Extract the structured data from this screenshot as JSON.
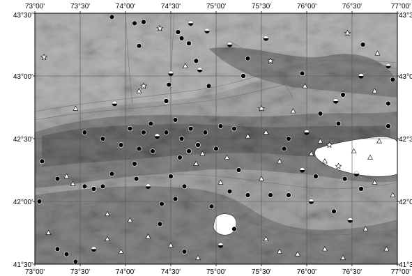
{
  "map": {
    "lon_ticks": [
      "73°00'",
      "73°30'",
      "74°00'",
      "74°30'",
      "75°00'",
      "75°30'",
      "76°00'",
      "76°30'",
      "77°00'"
    ],
    "lat_ticks": [
      "43°30'",
      "43°00'",
      "42°30'",
      "42°00'",
      "41°30'"
    ],
    "lat_ticks_right": [
      "43°3",
      "43°0",
      "42°3",
      "42°0",
      "41°3"
    ],
    "lon_range": [
      73.0,
      77.0
    ],
    "lat_range": [
      41.5,
      43.5
    ],
    "grid": true,
    "colors": {
      "lowland": "#d6d6d6",
      "foothill": "#b4b4b4",
      "mountain": "#6e6e6e",
      "highland": "#3e3e3e",
      "water": "#ffffff"
    },
    "marker_types": [
      "filled-circle",
      "half-filled-circle",
      "open-triangle",
      "open-star"
    ],
    "stations": [
      {
        "lon": 73.85,
        "lat": 43.47,
        "type": "filled-circle"
      },
      {
        "lon": 74.1,
        "lat": 43.42,
        "type": "filled-circle"
      },
      {
        "lon": 74.2,
        "lat": 43.43,
        "type": "filled-circle"
      },
      {
        "lon": 74.38,
        "lat": 43.38,
        "type": "open-star"
      },
      {
        "lon": 74.15,
        "lat": 43.24,
        "type": "filled-circle"
      },
      {
        "lon": 74.58,
        "lat": 43.35,
        "type": "filled-circle"
      },
      {
        "lon": 74.62,
        "lat": 43.3,
        "type": "filled-circle"
      },
      {
        "lon": 74.7,
        "lat": 43.26,
        "type": "filled-circle"
      },
      {
        "lon": 74.72,
        "lat": 43.42,
        "type": "half-filled-circle"
      },
      {
        "lon": 74.78,
        "lat": 43.12,
        "type": "filled-circle"
      },
      {
        "lon": 74.82,
        "lat": 43.05,
        "type": "half-filled-circle"
      },
      {
        "lon": 74.66,
        "lat": 43.08,
        "type": "open-triangle"
      },
      {
        "lon": 74.5,
        "lat": 43.02,
        "type": "half-filled-circle"
      },
      {
        "lon": 74.9,
        "lat": 43.36,
        "type": "half-filled-circle"
      },
      {
        "lon": 74.92,
        "lat": 42.92,
        "type": "filled-circle"
      },
      {
        "lon": 73.1,
        "lat": 43.15,
        "type": "open-star"
      },
      {
        "lon": 74.2,
        "lat": 42.92,
        "type": "open-star"
      },
      {
        "lon": 74.15,
        "lat": 42.88,
        "type": "open-triangle"
      },
      {
        "lon": 73.88,
        "lat": 42.78,
        "type": "half-filled-circle"
      },
      {
        "lon": 73.45,
        "lat": 42.74,
        "type": "open-triangle"
      },
      {
        "lon": 74.48,
        "lat": 42.93,
        "type": "filled-circle"
      },
      {
        "lon": 74.45,
        "lat": 42.8,
        "type": "filled-circle"
      },
      {
        "lon": 75.15,
        "lat": 43.25,
        "type": "half-filled-circle"
      },
      {
        "lon": 75.35,
        "lat": 43.14,
        "type": "filled-circle"
      },
      {
        "lon": 75.3,
        "lat": 43.0,
        "type": "filled-circle"
      },
      {
        "lon": 75.55,
        "lat": 43.3,
        "type": "half-filled-circle"
      },
      {
        "lon": 75.6,
        "lat": 43.12,
        "type": "open-star"
      },
      {
        "lon": 75.95,
        "lat": 43.02,
        "type": "filled-circle"
      },
      {
        "lon": 75.98,
        "lat": 42.92,
        "type": "open-triangle"
      },
      {
        "lon": 76.45,
        "lat": 43.34,
        "type": "open-star"
      },
      {
        "lon": 76.62,
        "lat": 43.25,
        "type": "filled-circle"
      },
      {
        "lon": 76.78,
        "lat": 43.18,
        "type": "open-triangle"
      },
      {
        "lon": 76.9,
        "lat": 43.08,
        "type": "half-filled-circle"
      },
      {
        "lon": 76.95,
        "lat": 42.97,
        "type": "filled-circle"
      },
      {
        "lon": 75.5,
        "lat": 42.74,
        "type": "open-star"
      },
      {
        "lon": 76.32,
        "lat": 42.8,
        "type": "half-filled-circle"
      },
      {
        "lon": 76.9,
        "lat": 42.78,
        "type": "filled-circle"
      },
      {
        "lon": 73.55,
        "lat": 42.55,
        "type": "filled-circle"
      },
      {
        "lon": 73.75,
        "lat": 42.5,
        "type": "filled-circle"
      },
      {
        "lon": 73.95,
        "lat": 42.45,
        "type": "filled-circle"
      },
      {
        "lon": 74.05,
        "lat": 42.58,
        "type": "filled-circle"
      },
      {
        "lon": 74.2,
        "lat": 42.55,
        "type": "filled-circle"
      },
      {
        "lon": 74.28,
        "lat": 42.62,
        "type": "filled-circle"
      },
      {
        "lon": 74.35,
        "lat": 42.52,
        "type": "half-filled-circle"
      },
      {
        "lon": 74.45,
        "lat": 42.55,
        "type": "filled-circle"
      },
      {
        "lon": 74.55,
        "lat": 42.65,
        "type": "filled-circle"
      },
      {
        "lon": 74.62,
        "lat": 42.5,
        "type": "filled-circle"
      },
      {
        "lon": 74.72,
        "lat": 42.58,
        "type": "filled-circle"
      },
      {
        "lon": 74.8,
        "lat": 42.45,
        "type": "filled-circle"
      },
      {
        "lon": 74.88,
        "lat": 42.55,
        "type": "filled-circle"
      },
      {
        "lon": 75.05,
        "lat": 42.6,
        "type": "filled-circle"
      },
      {
        "lon": 75.2,
        "lat": 42.58,
        "type": "filled-circle"
      },
      {
        "lon": 75.35,
        "lat": 42.52,
        "type": "open-triangle"
      },
      {
        "lon": 75.55,
        "lat": 42.55,
        "type": "open-triangle"
      },
      {
        "lon": 75.8,
        "lat": 42.5,
        "type": "filled-circle"
      },
      {
        "lon": 76.0,
        "lat": 42.55,
        "type": "half-filled-circle"
      },
      {
        "lon": 76.15,
        "lat": 42.48,
        "type": "open-triangle"
      },
      {
        "lon": 76.35,
        "lat": 42.62,
        "type": "filled-circle"
      },
      {
        "lon": 73.08,
        "lat": 42.32,
        "type": "filled-circle"
      },
      {
        "lon": 73.35,
        "lat": 42.2,
        "type": "open-triangle"
      },
      {
        "lon": 73.55,
        "lat": 42.12,
        "type": "filled-circle"
      },
      {
        "lon": 73.65,
        "lat": 42.1,
        "type": "filled-circle"
      },
      {
        "lon": 73.75,
        "lat": 42.12,
        "type": "filled-circle"
      },
      {
        "lon": 73.85,
        "lat": 42.22,
        "type": "filled-circle"
      },
      {
        "lon": 74.1,
        "lat": 42.3,
        "type": "filled-circle"
      },
      {
        "lon": 74.12,
        "lat": 42.18,
        "type": "filled-circle"
      },
      {
        "lon": 74.25,
        "lat": 42.12,
        "type": "half-filled-circle"
      },
      {
        "lon": 74.5,
        "lat": 42.2,
        "type": "filled-circle"
      },
      {
        "lon": 74.65,
        "lat": 42.12,
        "type": "filled-circle"
      },
      {
        "lon": 74.55,
        "lat": 42.02,
        "type": "filled-circle"
      },
      {
        "lon": 74.4,
        "lat": 41.98,
        "type": "filled-circle"
      },
      {
        "lon": 74.78,
        "lat": 42.3,
        "type": "open-triangle"
      },
      {
        "lon": 74.95,
        "lat": 41.96,
        "type": "filled-circle"
      },
      {
        "lon": 75.25,
        "lat": 42.25,
        "type": "filled-circle"
      },
      {
        "lon": 75.5,
        "lat": 42.18,
        "type": "open-triangle"
      },
      {
        "lon": 75.7,
        "lat": 42.32,
        "type": "open-triangle"
      },
      {
        "lon": 75.95,
        "lat": 42.25,
        "type": "half-filled-circle"
      },
      {
        "lon": 76.1,
        "lat": 42.2,
        "type": "filled-circle"
      },
      {
        "lon": 76.2,
        "lat": 42.32,
        "type": "open-triangle"
      },
      {
        "lon": 76.35,
        "lat": 42.28,
        "type": "open-star"
      },
      {
        "lon": 76.42,
        "lat": 42.18,
        "type": "filled-circle"
      },
      {
        "lon": 76.55,
        "lat": 42.22,
        "type": "half-filled-circle"
      },
      {
        "lon": 76.6,
        "lat": 42.1,
        "type": "filled-circle"
      },
      {
        "lon": 76.75,
        "lat": 42.15,
        "type": "open-triangle"
      },
      {
        "lon": 76.95,
        "lat": 42.05,
        "type": "open-triangle"
      },
      {
        "lon": 75.35,
        "lat": 42.05,
        "type": "filled-circle"
      },
      {
        "lon": 75.6,
        "lat": 42.05,
        "type": "filled-circle"
      },
      {
        "lon": 75.8,
        "lat": 42.05,
        "type": "filled-circle"
      },
      {
        "lon": 76.05,
        "lat": 42.0,
        "type": "half-filled-circle"
      },
      {
        "lon": 76.3,
        "lat": 41.92,
        "type": "filled-circle"
      },
      {
        "lon": 76.48,
        "lat": 41.85,
        "type": "half-filled-circle"
      },
      {
        "lon": 76.65,
        "lat": 41.78,
        "type": "open-triangle"
      },
      {
        "lon": 76.88,
        "lat": 41.62,
        "type": "open-triangle"
      },
      {
        "lon": 73.05,
        "lat": 42.0,
        "type": "filled-circle"
      },
      {
        "lon": 73.25,
        "lat": 41.62,
        "type": "filled-circle"
      },
      {
        "lon": 73.35,
        "lat": 41.58,
        "type": "filled-circle"
      },
      {
        "lon": 73.45,
        "lat": 41.52,
        "type": "filled-circle"
      },
      {
        "lon": 73.65,
        "lat": 41.62,
        "type": "half-filled-circle"
      },
      {
        "lon": 73.8,
        "lat": 41.7,
        "type": "open-triangle"
      },
      {
        "lon": 74.25,
        "lat": 41.72,
        "type": "open-triangle"
      },
      {
        "lon": 74.38,
        "lat": 41.82,
        "type": "filled-circle"
      },
      {
        "lon": 74.5,
        "lat": 41.65,
        "type": "open-triangle"
      },
      {
        "lon": 74.65,
        "lat": 41.6,
        "type": "filled-circle"
      },
      {
        "lon": 74.8,
        "lat": 41.55,
        "type": "open-triangle"
      },
      {
        "lon": 75.05,
        "lat": 41.65,
        "type": "half-filled-circle"
      },
      {
        "lon": 75.2,
        "lat": 41.78,
        "type": "filled-circle"
      },
      {
        "lon": 75.55,
        "lat": 41.7,
        "type": "open-triangle"
      },
      {
        "lon": 75.7,
        "lat": 41.6,
        "type": "open-triangle"
      },
      {
        "lon": 75.9,
        "lat": 41.58,
        "type": "open-triangle"
      },
      {
        "lon": 76.2,
        "lat": 41.62,
        "type": "open-triangle"
      },
      {
        "lon": 76.4,
        "lat": 41.55,
        "type": "open-triangle"
      },
      {
        "lon": 74.05,
        "lat": 41.85,
        "type": "open-triangle"
      },
      {
        "lon": 73.95,
        "lat": 41.6,
        "type": "open-triangle"
      },
      {
        "lon": 73.15,
        "lat": 41.75,
        "type": "open-triangle"
      },
      {
        "lon": 74.7,
        "lat": 42.4,
        "type": "filled-circle"
      },
      {
        "lon": 74.85,
        "lat": 42.38,
        "type": "open-triangle"
      },
      {
        "lon": 75.0,
        "lat": 42.42,
        "type": "filled-circle"
      },
      {
        "lon": 75.12,
        "lat": 42.35,
        "type": "open-triangle"
      },
      {
        "lon": 74.3,
        "lat": 42.4,
        "type": "filled-circle"
      },
      {
        "lon": 74.6,
        "lat": 42.35,
        "type": "filled-circle"
      },
      {
        "lon": 73.25,
        "lat": 42.18,
        "type": "filled-circle"
      },
      {
        "lon": 73.42,
        "lat": 42.14,
        "type": "open-triangle"
      },
      {
        "lon": 73.8,
        "lat": 41.9,
        "type": "open-triangle"
      },
      {
        "lon": 74.15,
        "lat": 42.42,
        "type": "filled-circle"
      },
      {
        "lon": 75.05,
        "lat": 42.15,
        "type": "open-triangle"
      },
      {
        "lon": 75.15,
        "lat": 42.08,
        "type": "filled-circle"
      },
      {
        "lon": 75.75,
        "lat": 42.42,
        "type": "filled-circle"
      },
      {
        "lon": 76.05,
        "lat": 42.38,
        "type": "open-triangle"
      },
      {
        "lon": 76.25,
        "lat": 42.45,
        "type": "open-star"
      },
      {
        "lon": 76.52,
        "lat": 42.4,
        "type": "open-triangle"
      },
      {
        "lon": 76.7,
        "lat": 42.35,
        "type": "open-triangle"
      },
      {
        "lon": 76.8,
        "lat": 42.48,
        "type": "open-triangle"
      },
      {
        "lon": 76.9,
        "lat": 42.6,
        "type": "filled-circle"
      },
      {
        "lon": 76.4,
        "lat": 42.85,
        "type": "filled-circle"
      },
      {
        "lon": 76.15,
        "lat": 42.7,
        "type": "filled-circle"
      },
      {
        "lon": 75.85,
        "lat": 42.72,
        "type": "open-triangle"
      },
      {
        "lon": 76.6,
        "lat": 43.0,
        "type": "half-filled-circle"
      },
      {
        "lon": 76.75,
        "lat": 42.88,
        "type": "open-triangle"
      }
    ]
  }
}
